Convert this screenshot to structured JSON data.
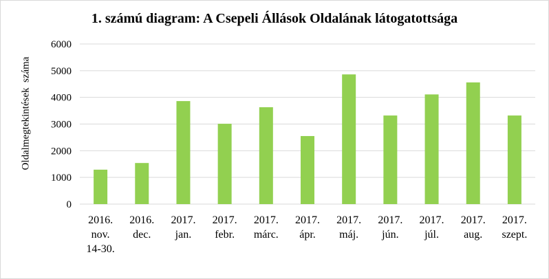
{
  "chart_data": {
    "type": "bar",
    "title": "1. számú diagram: A Csepeli Állások Oldalának látogatottsága",
    "ylabel": "Oldalmegtekintések  száma",
    "xlabel": "",
    "categories": [
      [
        "2016.",
        "nov.",
        "14-30."
      ],
      [
        "2016.",
        "dec."
      ],
      [
        "2017.",
        "jan."
      ],
      [
        "2017.",
        "febr."
      ],
      [
        "2017.",
        "márc."
      ],
      [
        "2017.",
        "ápr."
      ],
      [
        "2017.",
        "máj."
      ],
      [
        "2017.",
        "jún."
      ],
      [
        "2017.",
        "júl."
      ],
      [
        "2017.",
        "aug."
      ],
      [
        "2017.",
        "szept."
      ]
    ],
    "values": [
      1290,
      1540,
      3860,
      3010,
      3630,
      2550,
      4860,
      3320,
      4110,
      4560,
      3320
    ],
    "ylim": [
      0,
      6000
    ],
    "yticks": [
      "0",
      "1000",
      "2000",
      "3000",
      "4000",
      "5000",
      "6000"
    ],
    "grid": true,
    "bar_color": "#92d050",
    "grid_color": "#d9d9d9"
  }
}
